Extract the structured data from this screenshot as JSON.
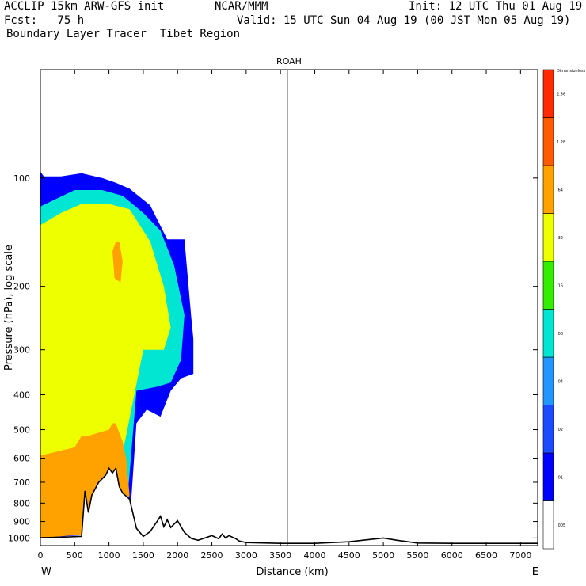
{
  "header": {
    "line1_left": "ACCLIP 15km ARW-GFS init",
    "line1_center": "NCAR/MMM",
    "line1_right": "Init: 12 UTC Thu 01 Aug 19",
    "line2_left": "Fcst:   75 h",
    "line2_right": "Valid: 15 UTC Sun 04 Aug 19 (00 JST Mon 05 Aug 19)",
    "line3_left": "Boundary Layer Tracer  Tibet Region"
  },
  "chart_data": {
    "type": "contour-cross-section",
    "title": "ROAH",
    "xlabel": "Distance (km)",
    "ylabel": "Pressure (hPa), log scale",
    "xlim": [
      0,
      7250
    ],
    "ylim": [
      1050,
      50
    ],
    "x_ticks": [
      "0",
      "500",
      "1000",
      "1500",
      "2000",
      "2500",
      "3000",
      "3500",
      "4000",
      "4500",
      "5000",
      "5500",
      "6000",
      "6500",
      "7000"
    ],
    "x_tick_values": [
      0,
      500,
      1000,
      1500,
      2000,
      2500,
      3000,
      3500,
      4000,
      4500,
      5000,
      5500,
      6000,
      6500,
      7000
    ],
    "y_ticks": [
      "100",
      "200",
      "300",
      "400",
      "500",
      "600",
      "700",
      "800",
      "900",
      "1000"
    ],
    "y_tick_values": [
      100,
      200,
      300,
      400,
      500,
      600,
      700,
      800,
      900,
      1000
    ],
    "x_end_labels": {
      "left": "W",
      "right": "E"
    },
    "vertical_marker_x": 3600,
    "colorbar": {
      "unit_label": "Dimensionless",
      "levels": [
        ".005",
        ".01",
        ".02",
        ".04",
        ".08",
        ".16",
        ".32",
        ".64",
        "1.28",
        "2.56"
      ],
      "colors": [
        "#ffffff",
        "#0000ff",
        "#1a4bff",
        "#2196ff",
        "#00e6d2",
        "#33ee00",
        "#eeff00",
        "#ffa200",
        "#ff5a00",
        "#ff2a00"
      ]
    },
    "terrain": {
      "x": [
        0,
        300,
        600,
        650,
        700,
        750,
        850,
        950,
        1000,
        1050,
        1100,
        1150,
        1200,
        1300,
        1400,
        1500,
        1600,
        1700,
        1750,
        1800,
        1850,
        1900,
        2000,
        2100,
        2200,
        2300,
        2500,
        2600,
        2650,
        2700,
        2750,
        2850,
        2900,
        3000,
        3500,
        4000,
        4500,
        4800,
        5000,
        5200,
        5500,
        6000,
        7250
      ],
      "pressure": [
        998,
        995,
        990,
        740,
        850,
        760,
        700,
        670,
        640,
        660,
        640,
        720,
        750,
        780,
        940,
        990,
        960,
        900,
        870,
        930,
        890,
        935,
        895,
        965,
        1003,
        1015,
        985,
        1005,
        975,
        1000,
        985,
        1005,
        1020,
        1030,
        1035,
        1035,
        1025,
        1010,
        1000,
        1015,
        1033,
        1035,
        1035
      ]
    },
    "tracer_fields": [
      {
        "level": ".01",
        "x": [
          0,
          50,
          300,
          600,
          900,
          1100,
          1300,
          1600,
          1850,
          2100,
          2200,
          2230,
          2230,
          2050,
          1900,
          1750,
          1550,
          1400,
          1300,
          1200,
          1100,
          700,
          0
        ],
        "pressure": [
          96,
          99,
          99,
          97,
          100,
          103,
          107,
          119,
          148,
          148,
          245,
          280,
          350,
          360,
          390,
          460,
          440,
          480,
          920,
          960,
          970,
          980,
          1000
        ]
      },
      {
        "level": ".08",
        "x": [
          0,
          200,
          500,
          900,
          1200,
          1500,
          1750,
          1950,
          2100,
          2050,
          1900,
          1700,
          1400,
          1250,
          1000,
          500,
          0
        ],
        "pressure": [
          120,
          115,
          108,
          108,
          112,
          125,
          140,
          175,
          240,
          320,
          370,
          380,
          390,
          860,
          950,
          970,
          1000
        ]
      },
      {
        "level": ".32",
        "x": [
          0,
          300,
          600,
          1000,
          1300,
          1600,
          1800,
          1900,
          1800,
          1500,
          1250,
          1100,
          800,
          400,
          0
        ],
        "pressure": [
          135,
          125,
          118,
          118,
          122,
          150,
          200,
          260,
          300,
          300,
          520,
          700,
          700,
          700,
          700
        ]
      },
      {
        "level": ".64",
        "x": [
          0,
          500,
          600,
          700,
          1000,
          1050,
          1100,
          1150,
          1200,
          1250,
          1300,
          1150,
          0
        ],
        "pressure": [
          590,
          560,
          520,
          520,
          500,
          480,
          480,
          510,
          540,
          600,
          760,
          960,
          1000
        ]
      },
      {
        "level": ".64",
        "x": [
          1050,
          1100,
          1150,
          1200,
          1170,
          1080
        ],
        "pressure": [
          160,
          150,
          150,
          170,
          195,
          190
        ]
      }
    ]
  }
}
